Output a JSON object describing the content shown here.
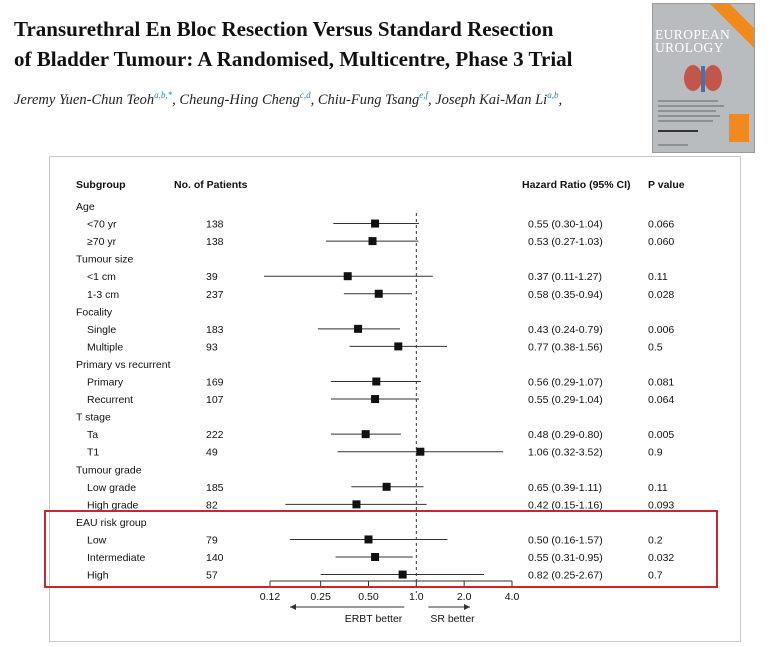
{
  "article": {
    "title_line1": "Transurethral En Bloc Resection Versus Standard Resection",
    "title_line2": "of Bladder Tumour: A Randomised, Multicentre, Phase 3 Trial",
    "authors": [
      {
        "name": "Jeremy Yuen-Chun Teoh",
        "aff": "a,b,*"
      },
      {
        "name": "Cheung-Hing Cheng",
        "aff": "c,d"
      },
      {
        "name": "Chiu-Fung Tsang",
        "aff": "e,f"
      },
      {
        "name": "Joseph Kai-Man Li",
        "aff": "a,b"
      }
    ]
  },
  "journal_cover": {
    "line1": "EUROPEAN",
    "line2": "UROLOGY",
    "colors": {
      "bg": "#b9bcbe",
      "accent": "#f08a1c"
    }
  },
  "chart_data": {
    "type": "forest",
    "headers": {
      "subgroup": "Subgroup",
      "patients": "No. of Patients",
      "hr": "Hazard Ratio (95% CI)",
      "p": "P value"
    },
    "x_scale": "log",
    "xlim": [
      0.12,
      4.0
    ],
    "ticks": [
      0.12,
      0.25,
      0.5,
      1.0,
      2.0,
      4.0
    ],
    "tick_labels": [
      "0.12",
      "0.25",
      "0.50",
      "1.0",
      "2.0",
      "4.0"
    ],
    "reference_line": 1.0,
    "direction_left": "ERBT better",
    "direction_right": "SR better",
    "highlight_group": "EAU risk group",
    "highlight_color": "#c6282b",
    "groups": [
      {
        "label": "Age",
        "rows": [
          {
            "label": "<70 yr",
            "n": "138",
            "hr": 0.55,
            "lo": 0.3,
            "hi": 1.04,
            "hr_text": "0.55 (0.30-1.04)",
            "p": "0.066"
          },
          {
            "label": "≥70 yr",
            "n": "138",
            "hr": 0.53,
            "lo": 0.27,
            "hi": 1.03,
            "hr_text": "0.53 (0.27-1.03)",
            "p": "0.060"
          }
        ]
      },
      {
        "label": "Tumour size",
        "rows": [
          {
            "label": "<1 cm",
            "n": "39",
            "hr": 0.37,
            "lo": 0.11,
            "hi": 1.27,
            "hr_text": "0.37 (0.11-1.27)",
            "p": "0.11"
          },
          {
            "label": "1-3 cm",
            "n": "237",
            "hr": 0.58,
            "lo": 0.35,
            "hi": 0.94,
            "hr_text": "0.58 (0.35-0.94)",
            "p": "0.028"
          }
        ]
      },
      {
        "label": "Focality",
        "rows": [
          {
            "label": "Single",
            "n": "183",
            "hr": 0.43,
            "lo": 0.24,
            "hi": 0.79,
            "hr_text": "0.43 (0.24-0.79)",
            "p": "0.006"
          },
          {
            "label": "Multiple",
            "n": "93",
            "hr": 0.77,
            "lo": 0.38,
            "hi": 1.56,
            "hr_text": "0.77 (0.38-1.56)",
            "p": "0.5"
          }
        ]
      },
      {
        "label": "Primary vs recurrent",
        "rows": [
          {
            "label": "Primary",
            "n": "169",
            "hr": 0.56,
            "lo": 0.29,
            "hi": 1.07,
            "hr_text": "0.56 (0.29-1.07)",
            "p": "0.081"
          },
          {
            "label": "Recurrent",
            "n": "107",
            "hr": 0.55,
            "lo": 0.29,
            "hi": 1.04,
            "hr_text": "0.55 (0.29-1.04)",
            "p": "0.064"
          }
        ]
      },
      {
        "label": "T stage",
        "rows": [
          {
            "label": "Ta",
            "n": "222",
            "hr": 0.48,
            "lo": 0.29,
            "hi": 0.8,
            "hr_text": "0.48 (0.29-0.80)",
            "p": "0.005"
          },
          {
            "label": "T1",
            "n": "49",
            "hr": 1.06,
            "lo": 0.32,
            "hi": 3.52,
            "hr_text": "1.06 (0.32-3.52)",
            "p": "0.9"
          }
        ]
      },
      {
        "label": "Tumour grade",
        "rows": [
          {
            "label": "Low grade",
            "n": "185",
            "hr": 0.65,
            "lo": 0.39,
            "hi": 1.11,
            "hr_text": "0.65 (0.39-1.11)",
            "p": "0.11"
          },
          {
            "label": "High grade",
            "n": "82",
            "hr": 0.42,
            "lo": 0.15,
            "hi": 1.16,
            "hr_text": "0.42 (0.15-1.16)",
            "p": "0.093"
          }
        ]
      },
      {
        "label": "EAU risk group",
        "rows": [
          {
            "label": "Low",
            "n": "79",
            "hr": 0.5,
            "lo": 0.16,
            "hi": 1.57,
            "hr_text": "0.50 (0.16-1.57)",
            "p": "0.2"
          },
          {
            "label": "Intermediate",
            "n": "140",
            "hr": 0.55,
            "lo": 0.31,
            "hi": 0.95,
            "hr_text": "0.55 (0.31-0.95)",
            "p": "0.032"
          },
          {
            "label": "High",
            "n": "57",
            "hr": 0.82,
            "lo": 0.25,
            "hi": 2.67,
            "hr_text": "0.82 (0.25-2.67)",
            "p": "0.7"
          }
        ]
      }
    ]
  }
}
